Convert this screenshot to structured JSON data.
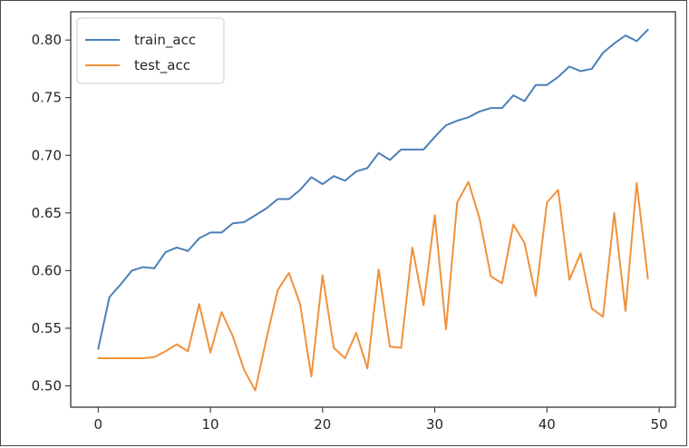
{
  "chart_data": {
    "type": "line",
    "title": "",
    "xlabel": "",
    "ylabel": "",
    "xlim": [
      -2.45,
      51.45
    ],
    "ylim": [
      0.4815,
      0.8245
    ],
    "x_ticks": [
      0,
      10,
      20,
      30,
      40,
      50
    ],
    "y_ticks": [
      0.5,
      0.55,
      0.6,
      0.65,
      0.7,
      0.75,
      0.8
    ],
    "x_tick_labels": [
      "0",
      "10",
      "20",
      "30",
      "40",
      "50"
    ],
    "y_tick_labels": [
      "0.50",
      "0.55",
      "0.60",
      "0.65",
      "0.70",
      "0.75",
      "0.80"
    ],
    "grid": false,
    "legend_position": "top-left",
    "series": [
      {
        "name": "train_acc",
        "color": "#4c7fb8",
        "values": [
          0.532,
          0.577,
          0.588,
          0.6,
          0.603,
          0.602,
          0.616,
          0.62,
          0.617,
          0.628,
          0.633,
          0.633,
          0.641,
          0.642,
          0.648,
          0.654,
          0.662,
          0.662,
          0.67,
          0.681,
          0.675,
          0.682,
          0.678,
          0.686,
          0.689,
          0.702,
          0.696,
          0.705,
          0.705,
          0.705,
          0.716,
          0.726,
          0.73,
          0.733,
          0.738,
          0.741,
          0.741,
          0.752,
          0.747,
          0.761,
          0.761,
          0.768,
          0.777,
          0.773,
          0.775,
          0.789,
          0.797,
          0.804,
          0.799,
          0.809
        ]
      },
      {
        "name": "test_acc",
        "color": "#f0913a",
        "values": [
          0.524,
          0.524,
          0.524,
          0.524,
          0.524,
          0.525,
          0.53,
          0.536,
          0.53,
          0.571,
          0.529,
          0.564,
          0.543,
          0.514,
          0.496,
          0.541,
          0.583,
          0.598,
          0.571,
          0.508,
          0.596,
          0.533,
          0.524,
          0.546,
          0.515,
          0.601,
          0.534,
          0.533,
          0.62,
          0.57,
          0.648,
          0.549,
          0.659,
          0.677,
          0.645,
          0.595,
          0.589,
          0.64,
          0.624,
          0.578,
          0.659,
          0.67,
          0.592,
          0.615,
          0.567,
          0.56,
          0.65,
          0.565,
          0.676,
          0.593
        ]
      }
    ]
  }
}
